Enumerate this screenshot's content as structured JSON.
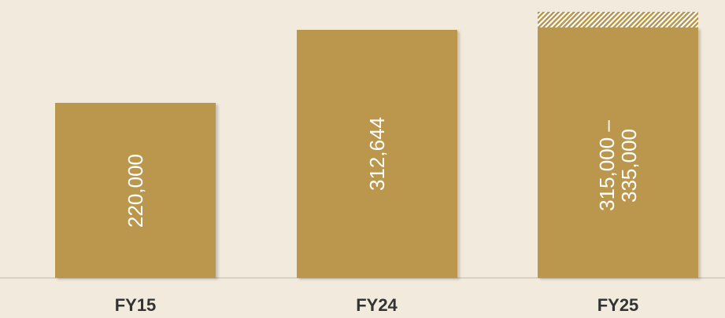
{
  "chart_data": {
    "type": "bar",
    "categories": [
      "FY15",
      "FY24",
      "FY25"
    ],
    "values": [
      220000,
      312644,
      315000
    ],
    "upper_values": [
      null,
      null,
      335000
    ],
    "value_labels": [
      "220,000",
      "312,644",
      "315,000 – 335,000"
    ],
    "color": "#bb974d"
  }
}
